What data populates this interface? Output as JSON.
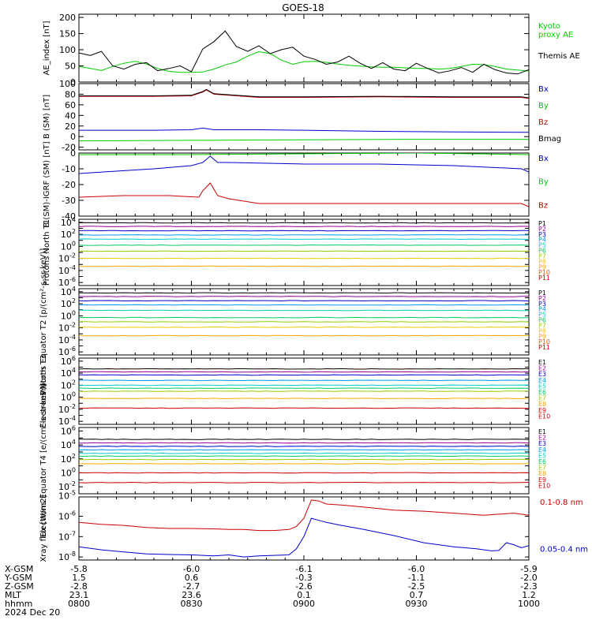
{
  "title": "GOES-18",
  "chart_data": [
    {
      "type": "line",
      "ylabel": "AE_index [nT]",
      "yticks": [
        "0",
        "50",
        "100",
        "150",
        "200"
      ],
      "ylim": [
        0,
        210
      ],
      "series": [
        {
          "name": "Kyoto proxy AE",
          "color": "#00cc00",
          "label_lines": [
            "Kyoto",
            "proxy AE"
          ],
          "x": [
            0,
            3,
            6,
            9,
            12,
            15,
            18,
            21,
            24,
            27,
            30,
            33,
            36,
            39,
            42,
            45,
            48,
            51,
            54,
            57,
            60,
            63,
            66,
            69,
            72,
            75,
            78,
            81,
            84,
            87,
            90,
            93,
            96,
            99,
            102,
            105,
            108,
            111,
            114,
            117,
            120
          ],
          "y": [
            48,
            42,
            36,
            48,
            58,
            64,
            56,
            42,
            33,
            30,
            30,
            31,
            40,
            53,
            62,
            80,
            94,
            88,
            68,
            55,
            63,
            64,
            61,
            56,
            52,
            49,
            47,
            46,
            46,
            44,
            42,
            42,
            40,
            42,
            48,
            55,
            54,
            48,
            40,
            37,
            34
          ]
        },
        {
          "name": "Themis AE",
          "color": "#000000",
          "label_lines": [
            "Themis AE"
          ],
          "x": [
            0,
            3,
            6,
            9,
            12,
            15,
            18,
            21,
            24,
            27,
            30,
            33,
            36,
            39,
            42,
            45,
            48,
            51,
            54,
            57,
            60,
            63,
            66,
            69,
            72,
            75,
            78,
            81,
            84,
            87,
            90,
            93,
            96,
            99,
            102,
            105,
            108,
            111,
            114,
            117,
            120
          ],
          "y": [
            90,
            82,
            95,
            50,
            40,
            55,
            60,
            35,
            42,
            50,
            32,
            102,
            125,
            158,
            110,
            95,
            112,
            88,
            100,
            108,
            80,
            70,
            55,
            62,
            80,
            58,
            42,
            60,
            40,
            35,
            58,
            42,
            28,
            35,
            45,
            30,
            55,
            38,
            28,
            25,
            38
          ]
        }
      ]
    },
    {
      "type": "line",
      "ylabel": "B (SM) [nT]",
      "yticks": [
        "-20",
        "0",
        "20",
        "40",
        "60",
        "80",
        "100"
      ],
      "ylim": [
        -25,
        100
      ],
      "series": [
        {
          "name": "Bx",
          "color": "#0000cc",
          "label_lines": [
            "Bx"
          ],
          "x": [
            0,
            20,
            30,
            33,
            36,
            48,
            60,
            80,
            100,
            120
          ],
          "y": [
            12,
            12,
            13,
            16,
            13,
            13,
            12,
            10,
            9,
            8
          ]
        },
        {
          "name": "By",
          "color": "#00cc00",
          "label_lines": [
            "By"
          ],
          "x": [
            0,
            30,
            60,
            90,
            120
          ],
          "y": [
            -8,
            -7,
            -6,
            -5,
            -5
          ]
        },
        {
          "name": "Bz",
          "color": "#cc0000",
          "label_lines": [
            "Bz"
          ],
          "x": [
            0,
            20,
            30,
            33,
            34,
            36,
            40,
            48,
            60,
            80,
            100,
            118,
            120
          ],
          "y": [
            76,
            76,
            77,
            84,
            88,
            80,
            78,
            74,
            74,
            75,
            74,
            74,
            72
          ]
        },
        {
          "name": "Bmag",
          "color": "#000000",
          "label_lines": [
            "Bmag"
          ],
          "x": [
            0,
            20,
            30,
            33,
            34,
            36,
            40,
            48,
            60,
            80,
            100,
            118,
            120
          ],
          "y": [
            77,
            77,
            78,
            85,
            89,
            81,
            79,
            75,
            75,
            76,
            75,
            75,
            73
          ]
        }
      ]
    },
    {
      "type": "line",
      "ylabel": "B (SM)-IGRF (SM) [nT]",
      "yticks": [
        "-40",
        "-30",
        "-20",
        "-10",
        "0"
      ],
      "ylim": [
        -40,
        0
      ],
      "series": [
        {
          "name": "Bx",
          "color": "#0000cc",
          "label_lines": [
            "Bx"
          ],
          "x": [
            0,
            20,
            30,
            33,
            35,
            37,
            40,
            60,
            80,
            100,
            118,
            120
          ],
          "y": [
            -13,
            -10,
            -8,
            -6,
            -2,
            -6,
            -6,
            -7,
            -7,
            -8,
            -10,
            -12
          ]
        },
        {
          "name": "By",
          "color": "#00cc00",
          "label_lines": [
            "By"
          ],
          "x": [
            0,
            30,
            60,
            90,
            120
          ],
          "y": [
            -1,
            -1,
            -0.5,
            0,
            -1
          ]
        },
        {
          "name": "Bz",
          "color": "#cc0000",
          "label_lines": [
            "Bz"
          ],
          "x": [
            0,
            12,
            24,
            32,
            33,
            35,
            37,
            40,
            48,
            60,
            80,
            100,
            118,
            120
          ],
          "y": [
            -28,
            -27,
            -27,
            -28,
            -24,
            -19,
            -27,
            -29,
            -32,
            -32,
            -32,
            -32,
            -32,
            -34
          ]
        }
      ]
    },
    {
      "type": "line",
      "ylabel": "Protons North T1",
      "ylog": true,
      "ytick_exp": [
        -6,
        -4,
        -2,
        0,
        2,
        4
      ],
      "ylim": [
        -6.5,
        4.5
      ],
      "series": [
        {
          "name": "P1",
          "color": "#000000",
          "label_lines": [
            "P1"
          ],
          "level": 3.9
        },
        {
          "name": "P2",
          "color": "#990099",
          "label_lines": [
            "P2"
          ],
          "level": 3.3
        },
        {
          "name": "P3",
          "color": "#0000cc",
          "label_lines": [
            "P3"
          ],
          "level": 2.6
        },
        {
          "name": "P4",
          "color": "#0099ee",
          "label_lines": [
            "P4"
          ],
          "level": 1.9
        },
        {
          "name": "P5",
          "color": "#00cccc",
          "label_lines": [
            "P5"
          ],
          "level": 1.2
        },
        {
          "name": "P6",
          "color": "#00cc66",
          "label_lines": [
            "P6"
          ],
          "level": 0.2
        },
        {
          "name": "P7",
          "color": "#99cc00",
          "label_lines": [
            "P7"
          ],
          "level": -0.8
        },
        {
          "name": "P8",
          "color": "#eecc00",
          "label_lines": [
            "P8"
          ],
          "level": -2.0
        },
        {
          "name": "P9",
          "color": "#ffaa00",
          "label_lines": [
            "P9"
          ],
          "level": -3.3
        },
        {
          "name": "P10",
          "color": "#ee5500",
          "label_lines": [
            "P10"
          ],
          "level": null
        },
        {
          "name": "P11",
          "color": "#cc0000",
          "label_lines": [
            "P11"
          ],
          "level": null
        }
      ]
    },
    {
      "type": "line",
      "ylabel": "Protons Equator T2 [p/(cm²-s-sr-keV)]",
      "ylog": true,
      "ytick_exp": [
        -6,
        -4,
        -2,
        0,
        2,
        4
      ],
      "ylim": [
        -6.5,
        4.5
      ],
      "series": [
        {
          "name": "P1",
          "color": "#000000",
          "label_lines": [
            "P1"
          ],
          "level": 3.8
        },
        {
          "name": "P2",
          "color": "#990099",
          "label_lines": [
            "P2"
          ],
          "level": 3.2
        },
        {
          "name": "P3",
          "color": "#0000cc",
          "label_lines": [
            "P3"
          ],
          "level": 2.5
        },
        {
          "name": "P4",
          "color": "#0099ee",
          "label_lines": [
            "P4"
          ],
          "level": 1.8
        },
        {
          "name": "P5",
          "color": "#00cccc",
          "label_lines": [
            "P5"
          ],
          "level": 0.9
        },
        {
          "name": "P6",
          "color": "#00cc66",
          "label_lines": [
            "P6"
          ],
          "level": -0.3
        },
        {
          "name": "P7",
          "color": "#99cc00",
          "label_lines": [
            "P7"
          ],
          "level": -1.0
        },
        {
          "name": "P8",
          "color": "#eecc00",
          "label_lines": [
            "P8"
          ],
          "level": -1.9
        },
        {
          "name": "P9",
          "color": "#ffaa00",
          "label_lines": [
            "P9"
          ],
          "level": -3.3
        },
        {
          "name": "P10",
          "color": "#ee5500",
          "label_lines": [
            "P10"
          ],
          "level": null
        },
        {
          "name": "P11",
          "color": "#cc0000",
          "label_lines": [
            "P11"
          ],
          "level": null
        }
      ]
    },
    {
      "type": "line",
      "ylabel": "Electrons North T3",
      "ylog": true,
      "ytick_exp": [
        -4,
        -2,
        0,
        2,
        4,
        6
      ],
      "ylim": [
        -4.5,
        6.5
      ],
      "series": [
        {
          "name": "E1",
          "color": "#000000",
          "label_lines": [
            "E1"
          ],
          "level": 4.7
        },
        {
          "name": "E2",
          "color": "#990099",
          "label_lines": [
            "E2"
          ],
          "level": 4.2
        },
        {
          "name": "E3",
          "color": "#0000cc",
          "label_lines": [
            "E3"
          ],
          "level": 3.7
        },
        {
          "name": "E4",
          "color": "#0099ee",
          "label_lines": [
            "E4"
          ],
          "level": 2.8
        },
        {
          "name": "E5",
          "color": "#00cccc",
          "label_lines": [
            "E5"
          ],
          "level": 2.0
        },
        {
          "name": "E6",
          "color": "#00cc66",
          "label_lines": [
            "E6"
          ],
          "level": 1.5
        },
        {
          "name": "E7",
          "color": "#99cc00",
          "label_lines": [
            "E7"
          ],
          "level": 1.0
        },
        {
          "name": "E8",
          "color": "#ffaa00",
          "label_lines": [
            "E8"
          ],
          "level": -0.2
        },
        {
          "name": "E9",
          "color": "#cc0000",
          "label_lines": [
            "E9"
          ],
          "level": -1.8
        },
        {
          "name": "E10",
          "color": "#cc0000",
          "label_lines": [
            "E10"
          ],
          "level": null
        }
      ]
    },
    {
      "type": "line",
      "ylabel": "Electrons Equator T4 [e/(cm²-s-sr-keV)]",
      "ylog": true,
      "ytick_exp": [
        -2,
        0,
        2,
        4,
        6
      ],
      "ylim": [
        -3,
        6.5
      ],
      "series": [
        {
          "name": "E1",
          "color": "#000000",
          "label_lines": [
            "E1"
          ],
          "level": 4.8
        },
        {
          "name": "E2",
          "color": "#990099",
          "label_lines": [
            "E2"
          ],
          "level": 4.3
        },
        {
          "name": "E3",
          "color": "#0000cc",
          "label_lines": [
            "E3"
          ],
          "level": 3.8
        },
        {
          "name": "E4",
          "color": "#0099ee",
          "label_lines": [
            "E4"
          ],
          "level": 3.3
        },
        {
          "name": "E5",
          "color": "#00cccc",
          "label_lines": [
            "E5"
          ],
          "level": 2.8
        },
        {
          "name": "E6",
          "color": "#00cc66",
          "label_lines": [
            "E6"
          ],
          "level": 2.4
        },
        {
          "name": "E7",
          "color": "#99cc00",
          "label_lines": [
            "E7"
          ],
          "level": 1.9
        },
        {
          "name": "E8",
          "color": "#ffaa00",
          "label_lines": [
            "E8"
          ],
          "level": 1.3
        },
        {
          "name": "E9",
          "color": "#cc0000",
          "label_lines": [
            "E9"
          ],
          "level": 0.0
        },
        {
          "name": "E10",
          "color": "#cc0000",
          "label_lines": [
            "E10"
          ],
          "level": -1.4
        }
      ]
    },
    {
      "type": "line",
      "ylabel": "Xray flux [W/m2]",
      "ylog": true,
      "ytick_exp": [
        -8,
        -7,
        -6,
        -5
      ],
      "ylim": [
        -8.15,
        -5.05
      ],
      "series": [
        {
          "name": "0.1-0.8 nm",
          "color": "#cc0000",
          "label_lines": [
            "0.1-0.8 nm"
          ],
          "x": [
            0,
            6,
            12,
            18,
            24,
            30,
            36,
            40,
            44,
            48,
            52,
            56,
            58,
            60,
            62,
            64,
            66,
            70,
            76,
            84,
            92,
            100,
            108,
            112,
            116,
            118,
            120
          ],
          "y": [
            -6.3,
            -6.4,
            -6.45,
            -6.55,
            -6.6,
            -6.6,
            -6.62,
            -6.65,
            -6.65,
            -6.7,
            -6.7,
            -6.65,
            -6.5,
            -6.1,
            -5.2,
            -5.25,
            -5.4,
            -5.45,
            -5.55,
            -5.7,
            -5.75,
            -5.85,
            -5.95,
            -5.9,
            -5.85,
            -5.9,
            -5.95
          ]
        },
        {
          "name": "0.05-0.4 nm",
          "color": "#0000cc",
          "label_lines": [
            "0.05-0.4 nm"
          ],
          "x": [
            0,
            6,
            12,
            18,
            24,
            30,
            33,
            36,
            40,
            44,
            48,
            52,
            56,
            58,
            60,
            62,
            64,
            66,
            70,
            76,
            84,
            92,
            100,
            106,
            110,
            112,
            114,
            116,
            118,
            120
          ],
          "y": [
            -7.5,
            -7.65,
            -7.75,
            -7.85,
            -7.88,
            -7.9,
            -7.92,
            -7.95,
            -7.9,
            -8.0,
            -7.95,
            -7.92,
            -7.9,
            -7.6,
            -7.0,
            -6.1,
            -6.2,
            -6.3,
            -6.45,
            -6.65,
            -6.95,
            -7.3,
            -7.5,
            -7.6,
            -7.7,
            -7.68,
            -7.3,
            -7.4,
            -7.55,
            -7.45
          ]
        }
      ]
    }
  ],
  "xaxis": {
    "ticks": [
      0,
      30,
      60,
      90,
      120
    ],
    "rows": [
      {
        "label": "X-GSM",
        "values": [
          "-5.8",
          "-6.0",
          "-6.1",
          "-6.0",
          "-5.9"
        ]
      },
      {
        "label": "Y-GSM",
        "values": [
          "1.5",
          "0.6",
          "-0.3",
          "-1.1",
          "-2.0"
        ]
      },
      {
        "label": "Z-GSM",
        "values": [
          "-2.8",
          "-2.7",
          "-2.6",
          "-2.5",
          "-2.3"
        ]
      },
      {
        "label": "MLT",
        "values": [
          "23.1",
          "23.6",
          "0.1",
          "0.7",
          "1.2"
        ]
      },
      {
        "label": "hhmm",
        "values": [
          "0800",
          "0830",
          "0900",
          "0930",
          "1000"
        ]
      }
    ],
    "date": "2024 Dec 20"
  }
}
